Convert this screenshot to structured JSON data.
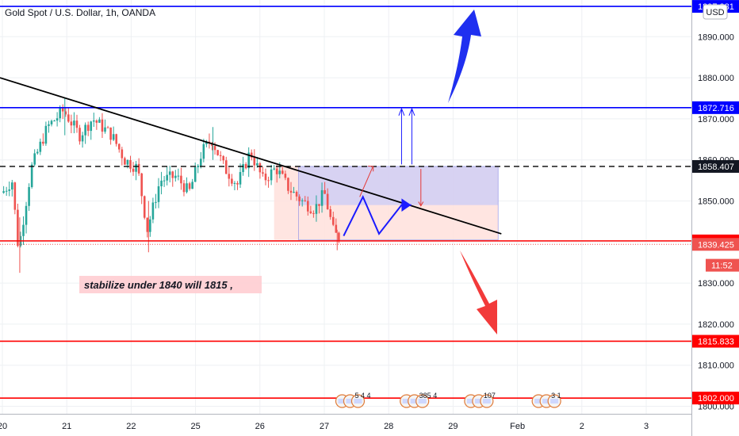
{
  "header": {
    "title": "Gold Spot / U.S. Dollar, 1h, OANDA",
    "currency": "USD"
  },
  "chart_data": {
    "type": "candlestick",
    "symbol": "Gold Spot / U.S. Dollar",
    "interval": "1h",
    "source": "OANDA",
    "currency": "USD",
    "ylim": [
      1799,
      1900
    ],
    "y_ticks": [
      "1800.000",
      "1810.000",
      "1820.000",
      "1830.000",
      "1840.000",
      "1850.000",
      "1860.000",
      "1870.000",
      "1880.000",
      "1890.000"
    ],
    "x_ticks": [
      "20",
      "21",
      "22",
      "25",
      "26",
      "27",
      "28",
      "29",
      "Feb",
      "2",
      "3"
    ],
    "colors": {
      "up": "#26a69a",
      "down": "#ef5350",
      "blue": "#0000ff",
      "red": "#ff0000"
    },
    "horizontal_levels": [
      {
        "value": 1897.381,
        "label": "1897.381",
        "color": "#0000ff",
        "style": "solid"
      },
      {
        "value": 1872.716,
        "label": "1872.716",
        "color": "#0000ff",
        "style": "solid"
      },
      {
        "value": 1858.407,
        "label": "1858.407",
        "color": "#000000",
        "style": "dashed"
      },
      {
        "value": 1840.273,
        "label": "1840.273",
        "color": "#ff0000",
        "style": "solid"
      },
      {
        "value": 1815.833,
        "label": "1815.833",
        "color": "#ff0000",
        "style": "solid"
      },
      {
        "value": 1802.0,
        "label": "1802.000",
        "color": "#ff0000",
        "style": "solid"
      }
    ],
    "last_price": {
      "value": 1839.425,
      "label": "1839.425"
    },
    "countdown": {
      "value": 1835.5,
      "label": "11:52"
    },
    "trendline": {
      "from": [
        0,
        1880
      ],
      "to": [
        7.75,
        1842
      ]
    },
    "annotation": "stabilize under 1840 will 1815  ,",
    "arrows": {
      "up": "bullish target 1897",
      "down": "bearish target 1815"
    },
    "events": [
      {
        "x": 5.4,
        "label": "5  4 4"
      },
      {
        "x": 6.4,
        "label": "385  4"
      },
      {
        "x": 7.4,
        "label": "107"
      },
      {
        "x": 8.45,
        "label": "3  1"
      }
    ]
  }
}
